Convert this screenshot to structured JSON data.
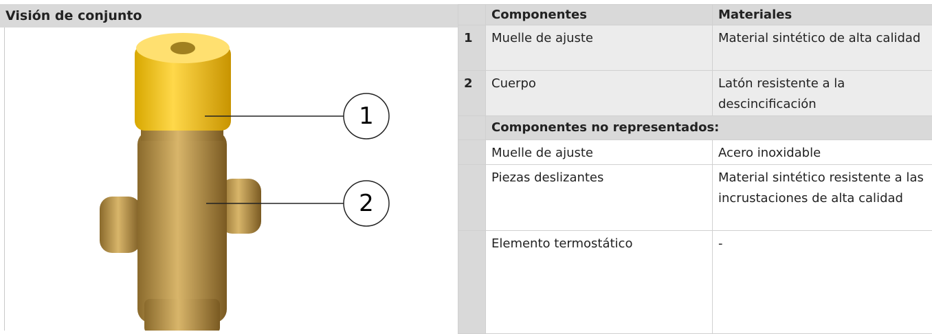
{
  "overview": {
    "title": "Visión de conjunto",
    "callouts": [
      "1",
      "2"
    ]
  },
  "table": {
    "header": [
      "",
      "Componentes",
      "Materiales"
    ],
    "rows": [
      [
        "1",
        "Muelle de ajuste",
        "Material sintético de alta calidad"
      ],
      [
        "2",
        "Cuerpo",
        "Latón resistente a la descincificación"
      ]
    ],
    "section": "Componentes no representados:",
    "section_rows": [
      [
        "Muelle de ajuste",
        "Acero inoxidable"
      ],
      [
        "Piezas deslizantes",
        "Material sintético resistente a las incrustaciones de alta calidad"
      ],
      [
        "Elemento termostático",
        "-"
      ]
    ]
  }
}
